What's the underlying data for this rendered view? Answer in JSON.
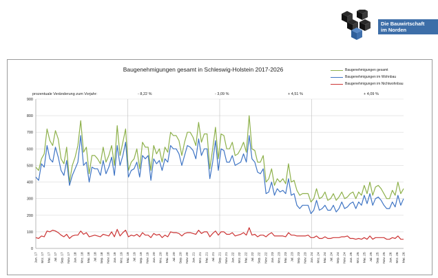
{
  "brand": {
    "name": "Die Bauwirtschaft im Norden",
    "line1": "Die Bauwirtschaft",
    "line2": "im Norden",
    "logo_icon": "isometric-cubes-icon",
    "colors": {
      "dark": "#1c1c1c",
      "blue": "#3d6ea8"
    }
  },
  "chart_data": {
    "type": "line",
    "title": "Baugenehmigungen gesamt in Schleswig-Holstein 2017-2026",
    "xlabel": "",
    "ylabel": "",
    "ylim": [
      0,
      900
    ],
    "yticks": [
      0,
      100,
      200,
      300,
      400,
      500,
      600,
      700,
      800,
      900
    ],
    "grid": true,
    "legend_position": "top-right",
    "pct_label": "prozentuale Veränderung zum Vorjahr:",
    "period_changes": [
      "- 8,22 %",
      "- 3,09 %",
      "+ 4,51 %",
      "+ 4,09 %"
    ],
    "tick_labels": [
      "Jan. 17",
      "Mrz. 17",
      "Mai. 17",
      "Jul. 17",
      "Sep. 17",
      "Nov. 17",
      "Jan. 18",
      "Mrz. 18",
      "Mai. 18",
      "Jul. 18",
      "Sep. 18",
      "Nov. 18",
      "Jan. 19",
      "Mrz. 19",
      "Mai. 19",
      "Jul. 19",
      "Sep. 19",
      "Nov. 19",
      "Jan. 20",
      "Mrz. 20",
      "Mai. 20",
      "Jul. 20",
      "Sep. 20",
      "Nov. 20",
      "Jan. 21",
      "Mrz. 21",
      "Mai. 21",
      "Jul. 21",
      "Sep. 21",
      "Nov. 21",
      "Jan. 22",
      "Mrz. 22",
      "Mai. 22",
      "Jul. 22",
      "Sep. 22",
      "Nov. 22",
      "Jan. 23",
      "Mrz. 23",
      "Mai. 23",
      "Jul. 23",
      "Sep. 23",
      "Nov. 23",
      "Jan. 24",
      "Mrz. 24",
      "Mai. 24",
      "Jul. 24",
      "Sep. 24",
      "Nov. 24",
      "Jan. 25",
      "Mrz. 25",
      "Mai. 25",
      "Jul. 25",
      "Sep. 25",
      "Nov. 25",
      "Jan. 26",
      "Mrz. 26",
      "Mai. 26"
    ],
    "series": [
      {
        "name": "Baugenehmigungen gesamt",
        "color": "#8db04a",
        "values": [
          490,
          470,
          540,
          570,
          720,
          650,
          620,
          710,
          660,
          540,
          510,
          610,
          400,
          500,
          550,
          620,
          770,
          580,
          610,
          450,
          560,
          560,
          540,
          510,
          610,
          520,
          560,
          620,
          500,
          740,
          560,
          640,
          720,
          470,
          520,
          540,
          600,
          480,
          640,
          610,
          610,
          470,
          620,
          570,
          600,
          520,
          610,
          580,
          700,
          680,
          680,
          650,
          560,
          640,
          700,
          700,
          670,
          620,
          760,
          640,
          690,
          690,
          480,
          600,
          730,
          540,
          690,
          680,
          600,
          600,
          640,
          560,
          570,
          600,
          640,
          580,
          800,
          600,
          590,
          520,
          520,
          560,
          400,
          420,
          480,
          380,
          420,
          400,
          420,
          390,
          510,
          400,
          410,
          350,
          320,
          330,
          330,
          330,
          280,
          300,
          360,
          300,
          310,
          340,
          290,
          300,
          330,
          290,
          310,
          340,
          300,
          310,
          330,
          340,
          300,
          340,
          320,
          380,
          330,
          400,
          320,
          370,
          380,
          360,
          330,
          300,
          300,
          350,
          320,
          400,
          330,
          360
        ],
        "show_all": true
      },
      {
        "name": "Baugenehmigungen im Wohnbau",
        "color": "#3e74c4",
        "values": [
          430,
          410,
          510,
          490,
          620,
          540,
          520,
          610,
          550,
          470,
          440,
          530,
          380,
          440,
          480,
          520,
          680,
          500,
          520,
          400,
          490,
          480,
          480,
          440,
          530,
          450,
          490,
          550,
          440,
          620,
          500,
          560,
          640,
          430,
          470,
          480,
          520,
          430,
          560,
          540,
          560,
          410,
          540,
          510,
          530,
          470,
          540,
          520,
          620,
          600,
          600,
          570,
          500,
          560,
          620,
          610,
          590,
          540,
          660,
          560,
          600,
          600,
          420,
          520,
          650,
          470,
          600,
          590,
          520,
          520,
          560,
          500,
          510,
          520,
          570,
          520,
          680,
          540,
          520,
          460,
          450,
          480,
          330,
          340,
          400,
          320,
          360,
          340,
          350,
          330,
          420,
          320,
          330,
          260,
          240,
          260,
          260,
          260,
          210,
          230,
          290,
          230,
          240,
          260,
          230,
          230,
          260,
          220,
          240,
          280,
          240,
          250,
          270,
          280,
          240,
          280,
          260,
          320,
          270,
          330,
          260,
          300,
          310,
          290,
          260,
          240,
          240,
          280,
          250,
          320,
          260,
          300
        ],
        "show_all": true
      },
      {
        "name": "Baugenehmigungen im Nichtwohnbau",
        "color": "#cc3333",
        "values": [
          65,
          60,
          75,
          70,
          105,
          100,
          110,
          105,
          95,
          80,
          70,
          85,
          60,
          75,
          80,
          80,
          105,
          85,
          95,
          70,
          75,
          80,
          75,
          70,
          85,
          80,
          75,
          100,
          70,
          115,
          75,
          95,
          110,
          70,
          80,
          75,
          85,
          70,
          95,
          80,
          80,
          65,
          90,
          80,
          85,
          65,
          80,
          70,
          100,
          95,
          95,
          90,
          75,
          90,
          95,
          95,
          90,
          85,
          110,
          90,
          100,
          100,
          70,
          90,
          105,
          80,
          100,
          100,
          85,
          85,
          95,
          75,
          80,
          85,
          95,
          80,
          125,
          80,
          85,
          70,
          80,
          80,
          70,
          85,
          95,
          75,
          75,
          75,
          75,
          70,
          95,
          80,
          80,
          75,
          75,
          75,
          75,
          80,
          65,
          65,
          75,
          60,
          60,
          70,
          60,
          60,
          65,
          65,
          65,
          70,
          70,
          75,
          60,
          60,
          55,
          60,
          55,
          65,
          55,
          75,
          55,
          65,
          65,
          65,
          65,
          55,
          55,
          65,
          60,
          75,
          55,
          55
        ],
        "show_all": true
      }
    ]
  }
}
